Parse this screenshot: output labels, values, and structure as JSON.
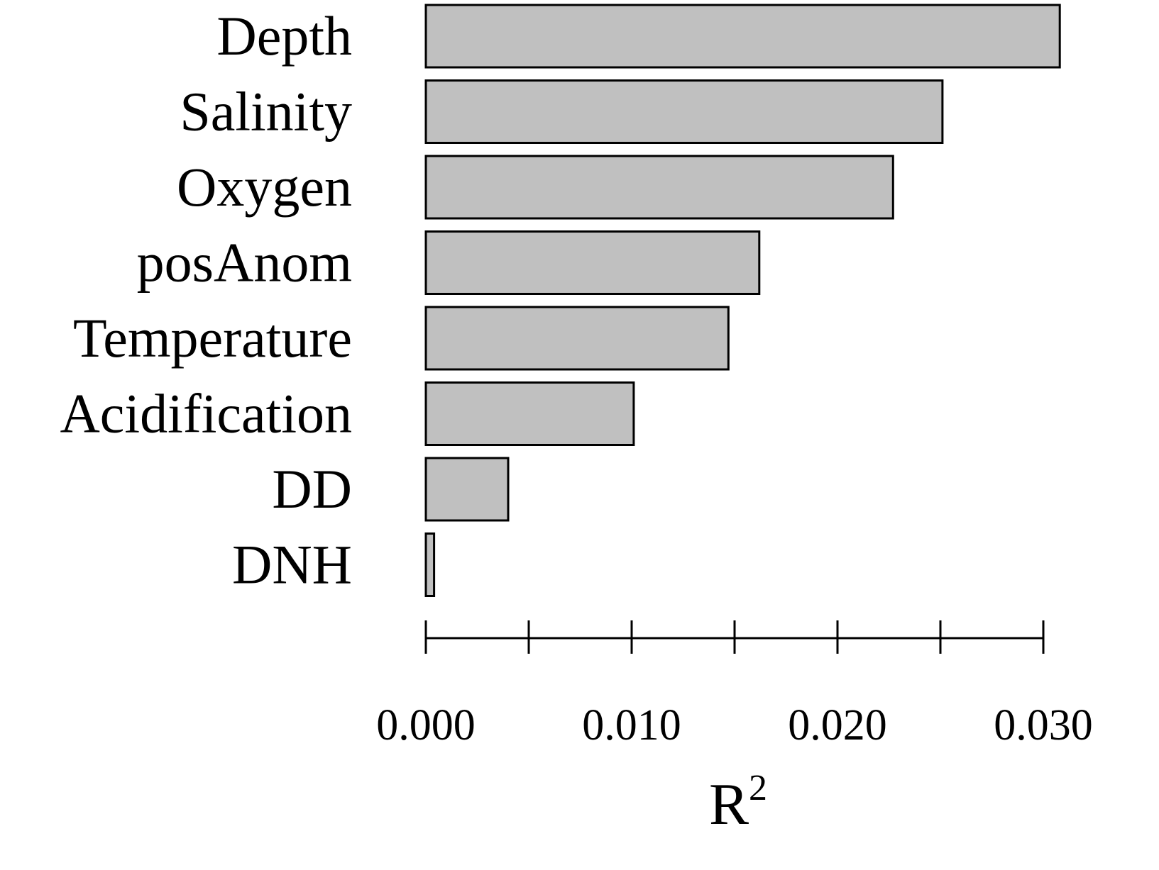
{
  "chart_data": {
    "type": "bar",
    "orientation": "horizontal",
    "categories": [
      "Depth",
      "Salinity",
      "Oxygen",
      "posAnom",
      "Temperature",
      "Acidification",
      "DD",
      "DNH"
    ],
    "values": [
      0.0308,
      0.0251,
      0.0227,
      0.0162,
      0.0147,
      0.0101,
      0.004,
      0.0004
    ],
    "title": "",
    "xlabel": "R",
    "xlabel_superscript": "2",
    "ylabel": "",
    "xlim": [
      0,
      0.03
    ],
    "major_ticks": [
      0,
      0.01,
      0.02,
      0.03
    ],
    "tick_labels": [
      "0.000",
      "0.010",
      "0.020",
      "0.030"
    ],
    "minor_ticks": [
      0.005,
      0.015,
      0.025
    ],
    "bar_color": "#c0c0c0",
    "bar_edge_color": "#000000",
    "grid": false,
    "legend": "none"
  }
}
